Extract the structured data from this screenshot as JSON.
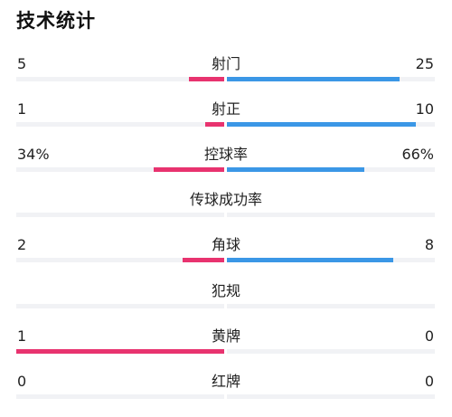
{
  "page_title": "技术统计",
  "colors": {
    "home": "#e8336f",
    "away": "#3b97e6",
    "track": "#f1f2f5"
  },
  "stats": [
    {
      "name": "射门",
      "home": "5",
      "away": "25",
      "home_fraction": 0.17,
      "away_fraction": 0.83
    },
    {
      "name": "射正",
      "home": "1",
      "away": "10",
      "home_fraction": 0.09,
      "away_fraction": 0.91
    },
    {
      "name": "控球率",
      "home": "34%",
      "away": "66%",
      "home_fraction": 0.34,
      "away_fraction": 0.66
    },
    {
      "name": "传球成功率",
      "home": "",
      "away": "",
      "home_fraction": 0,
      "away_fraction": 0
    },
    {
      "name": "角球",
      "home": "2",
      "away": "8",
      "home_fraction": 0.2,
      "away_fraction": 0.8
    },
    {
      "name": "犯规",
      "home": "",
      "away": "",
      "home_fraction": 0,
      "away_fraction": 0
    },
    {
      "name": "黄牌",
      "home": "1",
      "away": "0",
      "home_fraction": 1,
      "away_fraction": 0
    },
    {
      "name": "红牌",
      "home": "0",
      "away": "0",
      "home_fraction": 0,
      "away_fraction": 0
    }
  ]
}
